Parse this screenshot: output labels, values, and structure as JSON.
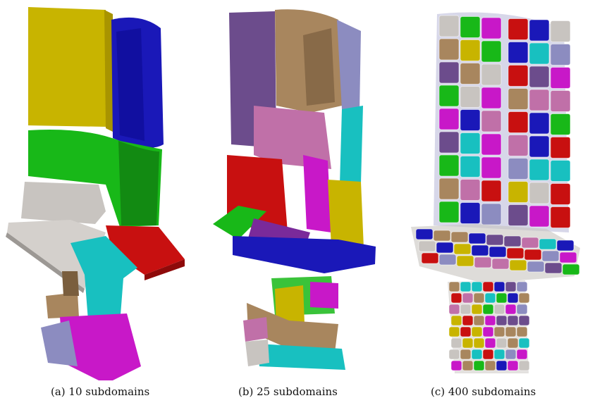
{
  "panels": [
    {
      "caption": "(a) 10 subdomains"
    },
    {
      "caption": "(b) 25 subdomains"
    },
    {
      "caption": "(c) 400 subdomains"
    }
  ],
  "palette": {
    "yellow": "#c8b400",
    "blue": "#1a18b8",
    "green": "#18b818",
    "gray": "#c8c4c0",
    "red": "#c81010",
    "cyan": "#18c0c0",
    "magenta": "#c818c8",
    "brown": "#a8865e",
    "purple": "#6c4c8c",
    "lavender": "#8c8cc0",
    "pink": "#c070a8"
  }
}
